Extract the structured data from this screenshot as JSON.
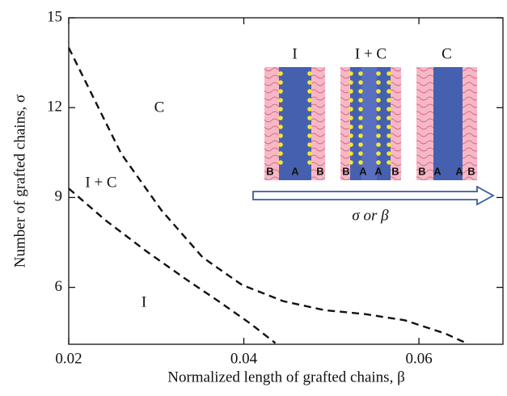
{
  "chart_data": {
    "type": "line",
    "x_label": "Normalized length of grafted chains, β",
    "y_label": "Number of grafted chains, σ",
    "xlim": [
      0.02,
      0.0696
    ],
    "ylim": [
      4.1,
      15
    ],
    "xticks": [
      0.02,
      0.04,
      0.06
    ],
    "yticks": [
      6,
      9,
      12,
      15
    ],
    "series": [
      {
        "color": "#111",
        "dash": true,
        "x": [
          0.02,
          0.026,
          0.0306,
          0.0353,
          0.0398,
          0.0445,
          0.0492,
          0.0538,
          0.0584,
          0.063,
          0.0654
        ],
        "values": [
          14.0,
          10.46,
          8.57,
          7.0,
          6.08,
          5.54,
          5.24,
          5.11,
          4.9,
          4.46,
          4.14
        ]
      },
      {
        "color": "#111",
        "dash": true,
        "x": [
          0.02,
          0.0242,
          0.0288,
          0.0334,
          0.0371,
          0.0408,
          0.0436
        ],
        "values": [
          9.3,
          8.24,
          7.22,
          6.27,
          5.54,
          4.78,
          4.14
        ]
      }
    ],
    "region_labels": [
      "C",
      "I + C",
      "I"
    ],
    "inset": {
      "panels": [
        {
          "title": "I",
          "labels": [
            "B",
            "A",
            "B"
          ]
        },
        {
          "title": "I + C",
          "labels": [
            "B",
            "A",
            "A",
            "B"
          ]
        },
        {
          "title": "C",
          "labels": [
            "B",
            "A",
            "A",
            "B"
          ]
        }
      ],
      "arrow_label": "σ or β"
    }
  }
}
